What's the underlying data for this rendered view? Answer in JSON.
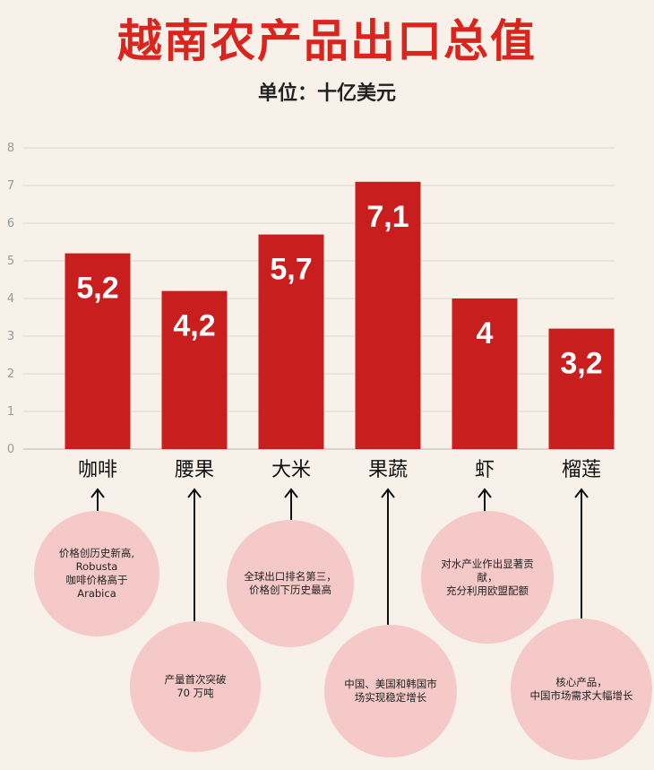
{
  "chart_data": {
    "type": "bar",
    "title": "越南农产品出口总值",
    "subtitle": "单位：十亿美元",
    "categories": [
      "咖啡",
      "腰果",
      "大米",
      "果蔬",
      "虾",
      "榴莲"
    ],
    "values": [
      5.2,
      4.2,
      5.7,
      7.1,
      4,
      3.2
    ],
    "value_labels": [
      "5,2",
      "4,2",
      "5,7",
      "7,1",
      "4",
      "3,2"
    ],
    "yticks": [
      "0",
      "1",
      "2",
      "3",
      "4",
      "5",
      "6",
      "7",
      "8"
    ],
    "ylim": [
      0,
      8
    ],
    "grid": true,
    "bar_color": "#c81e1e",
    "title_color": "#d9251d"
  },
  "annotations": [
    "价格创历史新高,\nRobusta\n咖啡价格高于\nArabica",
    "产量首次突破\n        70 万吨",
    "全球出口排名第三，\n价格创下历史最高",
    "中国、美国和韩国市\n场实现稳定增长",
    "对水产业作出显著贡献，\n充分利用欧盟配额",
    "核心产品，\n中国市场需求大幅增长"
  ]
}
